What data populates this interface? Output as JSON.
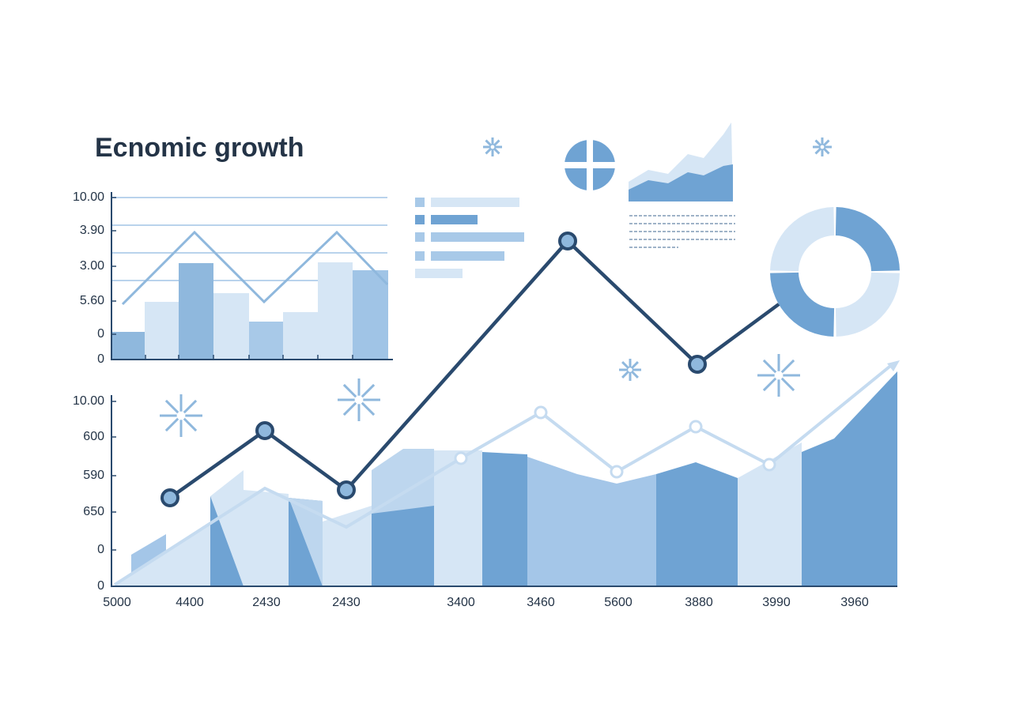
{
  "title": "Ecnomic growth",
  "top_chart": {
    "y_labels": [
      "10.00",
      "3.90",
      "3.00",
      "5.60",
      "0",
      "0"
    ]
  },
  "main_chart": {
    "y_labels": [
      "10.00",
      "600",
      "590",
      "650",
      "0",
      "0"
    ],
    "x_labels": [
      "5000",
      "4400",
      "2430",
      "2430",
      "3400",
      "3460",
      "5600",
      "3880",
      "3990",
      "3960"
    ]
  }
}
